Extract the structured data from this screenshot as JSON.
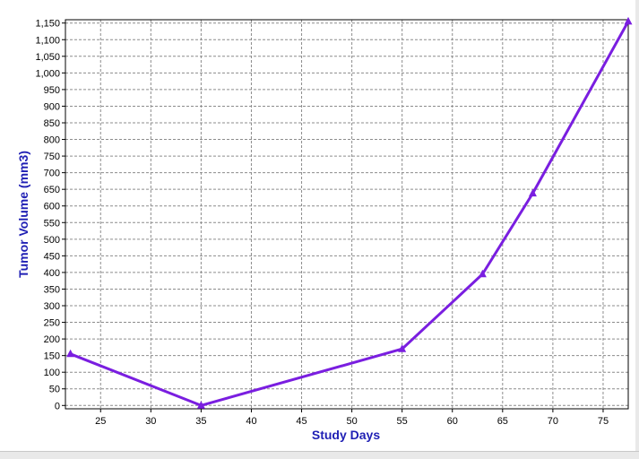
{
  "chart_data": {
    "type": "line",
    "title": "",
    "xlabel": "Study Days",
    "ylabel": "Tumor Volume (mm3)",
    "xlim": [
      21.5,
      77.5
    ],
    "ylim": [
      -10,
      1160
    ],
    "x_ticks": [
      25,
      30,
      35,
      40,
      45,
      50,
      55,
      60,
      65,
      70,
      75
    ],
    "y_ticks": [
      0,
      50,
      100,
      150,
      200,
      250,
      300,
      350,
      400,
      450,
      500,
      550,
      600,
      650,
      700,
      750,
      800,
      850,
      900,
      950,
      1000,
      1050,
      1100,
      1150
    ],
    "y_tick_labels": [
      "0",
      "50",
      "100",
      "150",
      "200",
      "250",
      "300",
      "350",
      "400",
      "450",
      "500",
      "550",
      "600",
      "650",
      "700",
      "750",
      "800",
      "850",
      "900",
      "950",
      "1,000",
      "1,050",
      "1,100",
      "1,150"
    ],
    "grid": true,
    "series": [
      {
        "color": "#7a1ee0",
        "marker": "triangle",
        "x": [
          22,
          35,
          55,
          63,
          68,
          77.5
        ],
        "y": [
          155,
          0,
          170,
          395,
          638,
          1155
        ]
      }
    ]
  }
}
